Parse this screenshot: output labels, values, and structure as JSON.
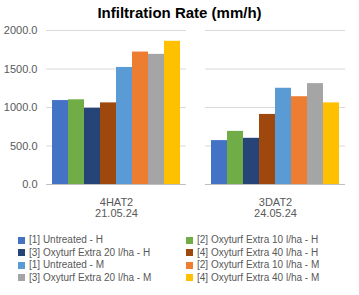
{
  "chart_data": {
    "type": "bar",
    "title": "Infiltration Rate (mm/h)",
    "categories": [
      "4HAT2\n21.05.24",
      "3DAT2\n24.05.24"
    ],
    "series": [
      {
        "name": "[1] Untreated - H",
        "color": "#4472C4",
        "values": [
          1090,
          570
        ]
      },
      {
        "name": "[2] Oxyturf Extra 10 l/ha - H",
        "color": "#70AD47",
        "values": [
          1100,
          690
        ]
      },
      {
        "name": "[3] Oxyturf Extra 20 l/ha - H",
        "color": "#264478",
        "values": [
          990,
          600
        ]
      },
      {
        "name": "[4] Oxyturf Extra 40 l/ha - H",
        "color": "#9E480E",
        "values": [
          1060,
          910
        ]
      },
      {
        "name": "[1] Untreated - M",
        "color": "#5B9BD5",
        "values": [
          1520,
          1250
        ]
      },
      {
        "name": "[2] Oxyturf Extra 10 l/ha - M",
        "color": "#ED7D31",
        "values": [
          1720,
          1140
        ]
      },
      {
        "name": "[3] Oxyturf Extra 20 l/ha - M",
        "color": "#A5A5A5",
        "values": [
          1690,
          1310
        ]
      },
      {
        "name": "[4] Oxyturf Extra 40 l/ha - M",
        "color": "#FFC000",
        "values": [
          1860,
          1060
        ]
      }
    ],
    "ylim": [
      0,
      2000
    ],
    "yticks": [
      {
        "value": 0,
        "label": "0.0"
      },
      {
        "value": 500,
        "label": "500.0"
      },
      {
        "value": 1000,
        "label": "1000.0"
      },
      {
        "value": 1500,
        "label": "1500.0"
      },
      {
        "value": 2000,
        "label": "2000.0"
      }
    ],
    "grid": true,
    "legend": "bottom"
  }
}
